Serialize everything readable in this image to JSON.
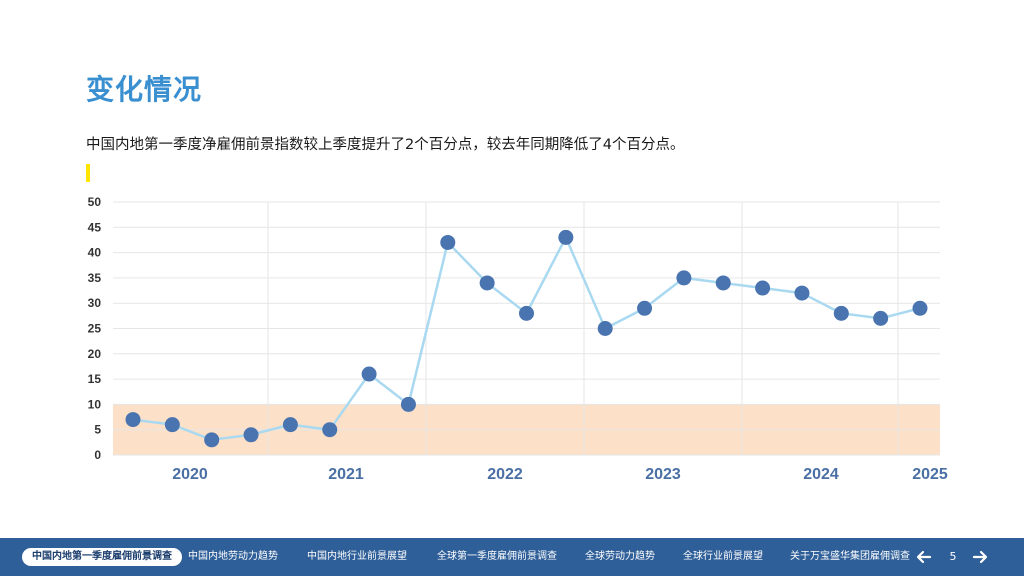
{
  "page": {
    "title": "变化情况",
    "subtitle": "中国内地第一季度净雇佣前景指数较上季度提升了2个百分点，较去年同期降低了4个百分点。"
  },
  "colors": {
    "title": "#3a8fd0",
    "accent_mark": "#ffe500",
    "line": "#a9d9f0",
    "marker": "#4a74b0",
    "band": "#fde0c8",
    "axis_labels": "#333333",
    "year_labels": "#4a6fa5",
    "footer": "#2f5f98"
  },
  "chart_data": {
    "type": "line",
    "title": "",
    "xlabel": "",
    "ylabel": "",
    "ylim": [
      0,
      50
    ],
    "yticks": [
      0,
      5,
      10,
      15,
      20,
      25,
      30,
      35,
      40,
      45,
      50
    ],
    "x_group_labels": [
      "2020",
      "2021",
      "2022",
      "2023",
      "2024",
      "2025"
    ],
    "series": [
      {
        "values": [
          7,
          6,
          3,
          4,
          6,
          5,
          16,
          10,
          42,
          34,
          28,
          43,
          25,
          29,
          35,
          34,
          33,
          32,
          28,
          27,
          29
        ]
      }
    ],
    "shaded_band": {
      "from": 0,
      "to": 10
    },
    "grid": true
  },
  "footer": {
    "nav_items": [
      "中国内地第一季度雇佣前景调查",
      "中国内地劳动力趋势",
      "中国内地行业前景展望",
      "全球第一季度雇佣前景调查",
      "全球劳动力趋势",
      "全球行业前景展望",
      "关于万宝盛华集团雇佣调查"
    ],
    "page_number": "5",
    "prev_icon": "arrow-left-icon",
    "next_icon": "arrow-right-icon"
  }
}
